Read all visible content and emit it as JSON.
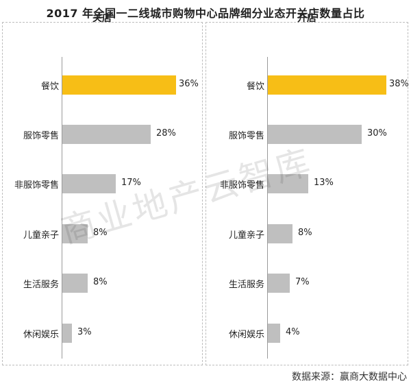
{
  "title": "2017 年全国一二线城市购物中心品牌细分业态开关店数量占比",
  "source": "数据来源：赢商大数据中心",
  "watermark": "商业地产云智库",
  "colors": {
    "highlight": "#F7BE16",
    "bar": "#BFBFBF"
  },
  "chart_data": [
    {
      "type": "bar",
      "title": "关店",
      "categories": [
        "餐饮",
        "服饰零售",
        "非服饰零售",
        "儿童亲子",
        "生活服务",
        "休闲娱乐"
      ],
      "values": [
        36,
        28,
        17,
        8,
        8,
        3
      ],
      "value_labels": [
        "36%",
        "28%",
        "17%",
        "8%",
        "8%",
        "3%"
      ],
      "xlim": [
        0,
        36
      ]
    },
    {
      "type": "bar",
      "title": "开店",
      "categories": [
        "餐饮",
        "服饰零售",
        "非服饰零售",
        "儿童亲子",
        "生活服务",
        "休闲娱乐"
      ],
      "values": [
        38,
        30,
        13,
        8,
        7,
        4
      ],
      "value_labels": [
        "38%",
        "30%",
        "13%",
        "8%",
        "7%",
        "4%"
      ],
      "xlim": [
        0,
        38
      ]
    }
  ]
}
